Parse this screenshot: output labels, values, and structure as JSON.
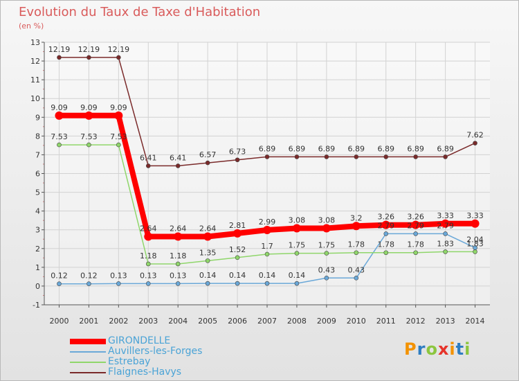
{
  "title": "Evolution du Taux de Taxe d'Habitation",
  "subtitle": "(en %)",
  "logo": {
    "text": "Proxiti",
    "colors": [
      "#f39200",
      "#2e7dc1",
      "#8cc63f",
      "#e6332a",
      "#f39200",
      "#2e7dc1",
      "#8cc63f"
    ]
  },
  "chart_data": {
    "type": "line",
    "title": "Evolution du Taux de Taxe d'Habitation",
    "ylabel": "(en %)",
    "xlabel": "",
    "x": [
      "2000",
      "2001",
      "2002",
      "2003",
      "2004",
      "2005",
      "2006",
      "2007",
      "2008",
      "2009",
      "2010",
      "2011",
      "2012",
      "2013",
      "2014"
    ],
    "ylim": [
      -1,
      13
    ],
    "yticks": [
      "-1",
      "0",
      "1",
      "2",
      "3",
      "4",
      "5",
      "6",
      "7",
      "8",
      "9",
      "10",
      "11",
      "12",
      "13"
    ],
    "grid": true,
    "legend_position": "bottom-left",
    "series": [
      {
        "name": "GIRONDELLE",
        "color": "#ff0000",
        "values": [
          9.09,
          9.09,
          9.09,
          2.64,
          2.64,
          2.64,
          2.81,
          2.99,
          3.08,
          3.08,
          3.2,
          3.26,
          3.26,
          3.33,
          3.33
        ],
        "labels": [
          "9.09",
          "9.09",
          "9.09",
          "2.64",
          "2.64",
          "2.64",
          "2.81",
          "2.99",
          "3.08",
          "3.08",
          "3.2",
          "3.26",
          "3.26",
          "3.33",
          "3.33"
        ]
      },
      {
        "name": "Auvillers-les-Forges",
        "color": "#6aa8d8",
        "values": [
          0.12,
          0.12,
          0.13,
          0.13,
          0.13,
          0.14,
          0.14,
          0.14,
          0.14,
          0.43,
          0.43,
          2.79,
          2.79,
          2.79,
          2.04
        ],
        "labels": [
          "0.12",
          "0.12",
          "0.13",
          "0.13",
          "0.13",
          "0.14",
          "0.14",
          "0.14",
          "0.14",
          "0.43",
          "0.43",
          "2.79",
          "2.79",
          "2.79",
          "2.04"
        ]
      },
      {
        "name": "Estrebay",
        "color": "#8fd66a",
        "values": [
          7.53,
          7.53,
          7.53,
          1.18,
          1.18,
          1.35,
          1.52,
          1.7,
          1.75,
          1.75,
          1.78,
          1.78,
          1.78,
          1.83,
          1.83
        ],
        "labels": [
          "7.53",
          "7.53",
          "7.53",
          "1.18",
          "1.18",
          "1.35",
          "1.52",
          "1.7",
          "1.75",
          "1.75",
          "1.78",
          "1.78",
          "1.78",
          "1.83",
          "1.83"
        ]
      },
      {
        "name": "Flaignes-Havys",
        "color": "#7a2a2a",
        "values": [
          12.19,
          12.19,
          12.19,
          6.41,
          6.41,
          6.57,
          6.73,
          6.89,
          6.89,
          6.89,
          6.89,
          6.89,
          6.89,
          6.89,
          7.62
        ],
        "labels": [
          "12.19",
          "12.19",
          "12.19",
          "6.41",
          "6.41",
          "6.57",
          "6.73",
          "6.89",
          "6.89",
          "6.89",
          "6.89",
          "6.89",
          "6.89",
          "6.89",
          "7.62"
        ]
      }
    ]
  }
}
